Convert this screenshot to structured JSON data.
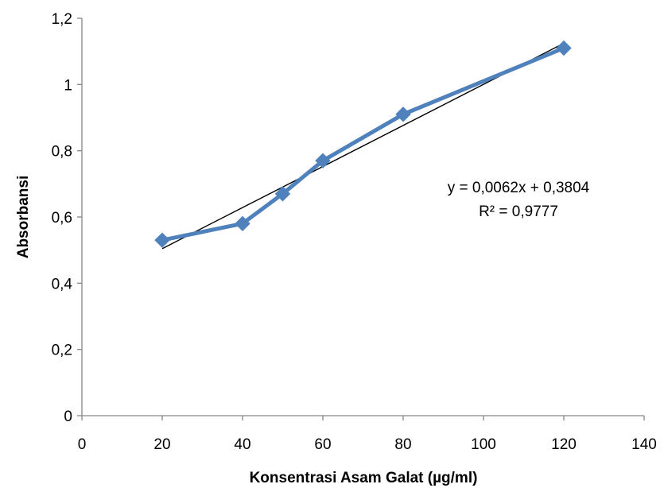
{
  "chart_data": {
    "type": "scatter",
    "title": "",
    "xlabel": "Konsentrasi Asam Galat (µg/ml)",
    "ylabel": "Absorbansi",
    "xlim": [
      0,
      140
    ],
    "ylim": [
      0,
      1.2
    ],
    "x_ticks": [
      0,
      20,
      40,
      60,
      80,
      100,
      120,
      140
    ],
    "x_tick_labels": [
      "0",
      "20",
      "40",
      "60",
      "80",
      "100",
      "120",
      "140"
    ],
    "y_ticks": [
      0,
      0.2,
      0.4,
      0.6,
      0.8,
      1.0,
      1.2
    ],
    "y_tick_labels": [
      "0",
      "0,2",
      "0,4",
      "0,6",
      "0,8",
      "1",
      "1,2"
    ],
    "grid": false,
    "legend": "none",
    "series": [
      {
        "x": [
          20,
          40,
          50,
          60,
          80,
          120
        ],
        "y": [
          0.53,
          0.58,
          0.67,
          0.77,
          0.91,
          1.11
        ],
        "color": "#4f81bd",
        "marker": "diamond",
        "line": true
      }
    ],
    "trendline": {
      "type": "linear",
      "slope": 0.0062,
      "intercept": 0.3804,
      "x_range": [
        20,
        120
      ],
      "color": "#000000"
    },
    "annotations": {
      "equation": "y = 0,0062x + 0,3804",
      "r2": "R² = 0,9777"
    }
  }
}
